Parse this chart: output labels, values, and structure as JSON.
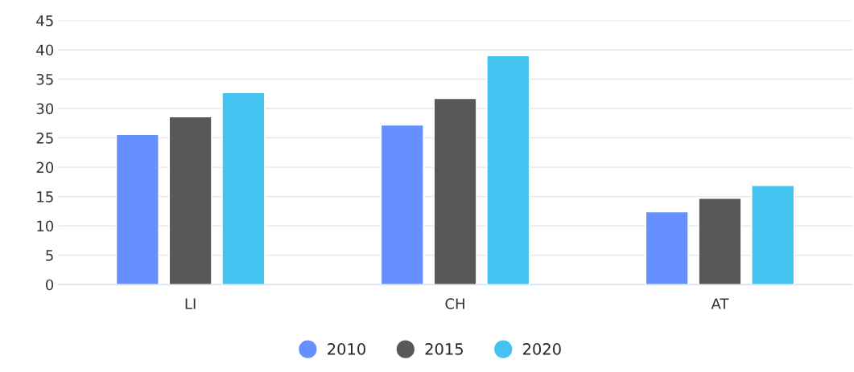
{
  "chart_data": {
    "type": "bar",
    "categories": [
      "LI",
      "CH",
      "AT"
    ],
    "series": [
      {
        "name": "2010",
        "color": "#6690ff",
        "values": [
          25.6,
          27.2,
          12.4
        ]
      },
      {
        "name": "2015",
        "color": "#58585a",
        "values": [
          28.6,
          31.7,
          14.7
        ]
      },
      {
        "name": "2020",
        "color": "#44c2f0",
        "values": [
          32.7,
          39.0,
          16.9
        ]
      }
    ],
    "ylim": [
      0,
      45
    ],
    "yticks": [
      0,
      5,
      10,
      15,
      20,
      25,
      30,
      35,
      40,
      45
    ],
    "grid": "y",
    "legend": "bottom"
  }
}
